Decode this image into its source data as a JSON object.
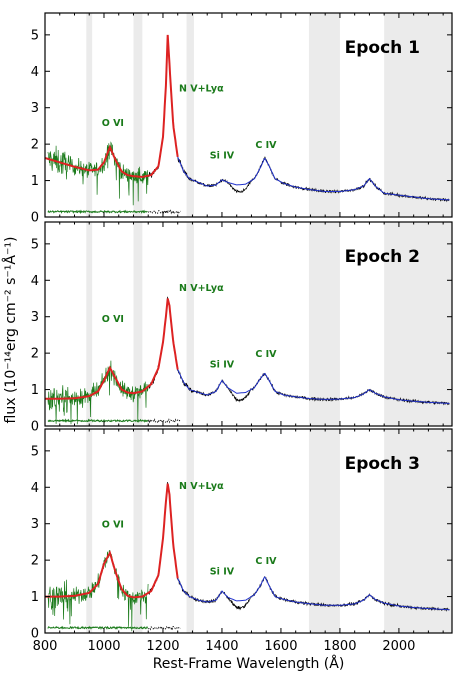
{
  "chart_data": {
    "type": "line",
    "xlabel": "Rest-Frame Wavelength (Å)",
    "ylabel": "flux (10⁻¹⁴erg cm⁻² s⁻¹Å⁻¹)",
    "xlim": [
      800,
      2180
    ],
    "ylim": [
      0,
      5.6
    ],
    "x_ticks": [
      800,
      1000,
      1200,
      1400,
      1600,
      1800,
      2000
    ],
    "y_ticks": [
      0,
      1,
      2,
      3,
      4,
      5
    ],
    "grid": false,
    "shaded_regions": [
      [
        940,
        960
      ],
      [
        1100,
        1130
      ],
      [
        1280,
        1305
      ],
      [
        1695,
        1800
      ],
      [
        1950,
        2180
      ]
    ],
    "line_labels": [
      {
        "text": "O VI",
        "x": 1030
      },
      {
        "text": "N V+Lyα",
        "x": 1330
      },
      {
        "text": "Si IV",
        "x": 1400
      },
      {
        "text": "C IV",
        "x": 1549
      }
    ],
    "colors": {
      "data_green": "#1a7a1a",
      "data_black": "#000000",
      "fit_red": "#dd2222",
      "fit_blue": "#2233cc",
      "shade": "#ebebeb"
    },
    "panels": [
      {
        "label": "Epoch 1",
        "label_y": {
          "O VI": 2.5,
          "N V+Lyα": 3.45,
          "Si IV": 1.6,
          "C IV": 1.9
        },
        "continuum": {
          "a": 0.75,
          "b": 0.0
        },
        "red_blue_fit": {
          "x": [
            800,
            850,
            900,
            950,
            980,
            1000,
            1020,
            1040,
            1060,
            1080,
            1100,
            1130,
            1160,
            1185,
            1200,
            1210,
            1216,
            1222,
            1235,
            1250,
            1270,
            1290,
            1320,
            1350,
            1380,
            1400,
            1420,
            1450,
            1480,
            1510,
            1530,
            1545,
            1560,
            1580,
            1610,
            1650,
            1700,
            1750,
            1800,
            1850,
            1880,
            1900,
            1920,
            1950,
            2000,
            2050,
            2100,
            2170
          ],
          "y": [
            1.62,
            1.5,
            1.38,
            1.28,
            1.3,
            1.5,
            1.92,
            1.55,
            1.25,
            1.15,
            1.12,
            1.1,
            1.15,
            1.4,
            2.2,
            3.6,
            5.0,
            4.2,
            2.5,
            1.65,
            1.25,
            1.05,
            0.95,
            0.85,
            0.88,
            1.02,
            0.95,
            0.88,
            0.9,
            1.05,
            1.35,
            1.62,
            1.4,
            1.05,
            0.92,
            0.82,
            0.75,
            0.7,
            0.7,
            0.75,
            0.85,
            1.05,
            0.85,
            0.65,
            0.6,
            0.55,
            0.5,
            0.47
          ],
          "red_until": 1250
        }
      },
      {
        "label": "Epoch 2",
        "label_y": {
          "O VI": 2.85,
          "N V+Lyα": 3.7,
          "Si IV": 1.6,
          "C IV": 1.9
        },
        "continuum": {
          "a": 0.72,
          "b": 0.0
        },
        "red_blue_fit": {
          "x": [
            800,
            850,
            900,
            950,
            980,
            1000,
            1020,
            1040,
            1060,
            1080,
            1100,
            1130,
            1160,
            1185,
            1200,
            1210,
            1216,
            1222,
            1235,
            1250,
            1270,
            1290,
            1320,
            1350,
            1380,
            1400,
            1420,
            1450,
            1480,
            1510,
            1530,
            1545,
            1560,
            1580,
            1610,
            1650,
            1700,
            1750,
            1800,
            1850,
            1880,
            1900,
            1920,
            1950,
            2000,
            2050,
            2100,
            2170
          ],
          "y": [
            0.75,
            0.75,
            0.76,
            0.82,
            0.95,
            1.25,
            1.6,
            1.3,
            1.0,
            0.92,
            0.9,
            0.95,
            1.15,
            1.6,
            2.3,
            3.0,
            3.5,
            3.3,
            2.3,
            1.55,
            1.2,
            1.0,
            0.92,
            0.85,
            0.95,
            1.25,
            1.05,
            0.9,
            0.92,
            1.05,
            1.3,
            1.45,
            1.25,
            0.95,
            0.85,
            0.8,
            0.75,
            0.73,
            0.74,
            0.78,
            0.88,
            1.0,
            0.9,
            0.8,
            0.72,
            0.68,
            0.65,
            0.62
          ],
          "red_until": 1250
        }
      },
      {
        "label": "Epoch 3",
        "label_y": {
          "O VI": 2.9,
          "N V+Lyα": 3.95,
          "Si IV": 1.6,
          "C IV": 1.9
        },
        "continuum": {
          "a": 0.72,
          "b": 0.0
        },
        "red_blue_fit": {
          "x": [
            800,
            850,
            900,
            950,
            980,
            1000,
            1020,
            1040,
            1060,
            1080,
            1100,
            1130,
            1160,
            1185,
            1200,
            1210,
            1216,
            1222,
            1235,
            1250,
            1270,
            1290,
            1320,
            1350,
            1380,
            1400,
            1420,
            1450,
            1480,
            1510,
            1530,
            1545,
            1560,
            1580,
            1610,
            1650,
            1700,
            1750,
            1800,
            1850,
            1880,
            1900,
            1920,
            1950,
            2000,
            2050,
            2100,
            2170
          ],
          "y": [
            1.0,
            1.0,
            1.02,
            1.1,
            1.35,
            1.9,
            2.2,
            1.65,
            1.2,
            1.02,
            0.98,
            1.0,
            1.15,
            1.6,
            2.6,
            3.6,
            4.1,
            3.8,
            2.4,
            1.5,
            1.15,
            1.0,
            0.9,
            0.85,
            0.9,
            1.15,
            0.98,
            0.88,
            0.9,
            1.05,
            1.3,
            1.55,
            1.3,
            1.0,
            0.92,
            0.85,
            0.8,
            0.76,
            0.76,
            0.8,
            0.9,
            1.05,
            0.92,
            0.82,
            0.74,
            0.7,
            0.67,
            0.64
          ],
          "red_until": 1250
        }
      }
    ]
  }
}
